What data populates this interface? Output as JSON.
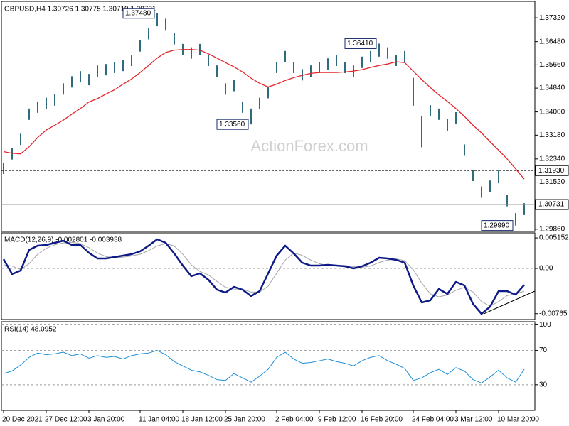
{
  "chart_data": [
    {
      "type": "hilo",
      "title": "GBPUSD,H4 1.30726 1.30775 1.30719 1.30731",
      "watermark": "ActionForex.com",
      "color": "#2f6b7c",
      "high": [
        1.3221,
        1.3272,
        1.3323,
        1.3412,
        1.3437,
        1.345,
        1.3462,
        1.3501,
        1.3526,
        1.3544,
        1.3534,
        1.3564,
        1.3569,
        1.3577,
        1.3584,
        1.3602,
        1.3653,
        1.3696,
        1.3748,
        1.3729,
        1.3678,
        1.364,
        1.3628,
        1.364,
        1.3602,
        1.3564,
        1.3501,
        1.3513,
        1.3437,
        1.3412,
        1.345,
        1.3488,
        1.3577,
        1.3615,
        1.3577,
        1.3551,
        1.3564,
        1.3577,
        1.3589,
        1.3602,
        1.3577,
        1.3564,
        1.3595,
        1.3615,
        1.3641,
        1.3628,
        1.3602,
        1.3615,
        1.352,
        1.3386,
        1.3424,
        1.3412,
        1.3374,
        1.3399,
        1.3285,
        1.3196,
        1.3137,
        1.3158,
        1.3193,
        1.3107,
        1.3043,
        1.3078
      ],
      "low": [
        1.3181,
        1.3232,
        1.3283,
        1.3372,
        1.3397,
        1.341,
        1.3422,
        1.3461,
        1.3486,
        1.3504,
        1.3494,
        1.3524,
        1.3529,
        1.3537,
        1.3544,
        1.3562,
        1.3613,
        1.3656,
        1.3702,
        1.3689,
        1.3638,
        1.36,
        1.3588,
        1.36,
        1.3562,
        1.3524,
        1.3461,
        1.3473,
        1.3397,
        1.3356,
        1.341,
        1.3448,
        1.3537,
        1.3575,
        1.3537,
        1.3511,
        1.3524,
        1.3537,
        1.3549,
        1.3562,
        1.3537,
        1.3524,
        1.3555,
        1.3575,
        1.3595,
        1.3588,
        1.3562,
        1.3575,
        1.3422,
        1.3275,
        1.3384,
        1.3372,
        1.3334,
        1.3359,
        1.3245,
        1.3156,
        1.3097,
        1.3118,
        1.3148,
        1.3067,
        1.2999,
        1.3036
      ],
      "ma": {
        "color": "#e3262b",
        "values": [
          1.326,
          1.3254,
          1.3252,
          1.3277,
          1.331,
          1.3336,
          1.3353,
          1.3371,
          1.3392,
          1.3412,
          1.3435,
          1.3447,
          1.3463,
          1.3478,
          1.3498,
          1.3516,
          1.3539,
          1.3564,
          1.359,
          1.361,
          1.3618,
          1.362,
          1.362,
          1.3618,
          1.3605,
          1.359,
          1.3574,
          1.3559,
          1.3541,
          1.3519,
          1.3501,
          1.3488,
          1.3498,
          1.3511,
          1.3521,
          1.3529,
          1.3536,
          1.3539,
          1.3539,
          1.3539,
          1.3541,
          1.3544,
          1.3549,
          1.3557,
          1.3564,
          1.3569,
          1.3577,
          1.3574,
          1.3544,
          1.3514,
          1.3486,
          1.346,
          1.3437,
          1.3412,
          1.3384,
          1.3353,
          1.3326,
          1.3295,
          1.3265,
          1.3234,
          1.3199,
          1.3163
        ]
      },
      "ylim": [
        1.2978,
        1.3785
      ],
      "yticks": [
        {
          "value": 1.3732,
          "label": "1.37320"
        },
        {
          "value": 1.3648,
          "label": "1.36480"
        },
        {
          "value": 1.3566,
          "label": "1.35660"
        },
        {
          "value": 1.3484,
          "label": "1.34840"
        },
        {
          "value": 1.34,
          "label": "1.34000"
        },
        {
          "value": 1.3318,
          "label": "1.33180"
        },
        {
          "value": 1.3234,
          "label": "1.32340"
        },
        {
          "value": 1.3152,
          "label": "1.31520"
        },
        {
          "value": 1.2986,
          "label": "1.29860"
        }
      ],
      "levels": [
        {
          "value": 1.3193,
          "label": "1.31930",
          "line": "dashed"
        },
        {
          "value": 1.30731,
          "label": "1.30731",
          "line": "solid"
        }
      ],
      "annotations": [
        {
          "value": 1.3748,
          "label": "1.37480"
        },
        {
          "value": 1.3356,
          "label": "1.33560"
        },
        {
          "value": 1.3641,
          "label": "1.36410"
        },
        {
          "value": 1.2999,
          "label": "1.29990"
        }
      ]
    },
    {
      "type": "line",
      "title": "MACD(12,26,9) -0.002801 -0.003938",
      "zero_line": true,
      "ylim": [
        -0.00864,
        0.00588
      ],
      "yticks": [
        {
          "value": 0.005152,
          "label": "0.005152"
        },
        {
          "value": 0,
          "label": "0.00"
        },
        {
          "value": -0.00765,
          "label": "-0.00765"
        }
      ],
      "series": [
        {
          "color": "#a6a6a6",
          "width": 1,
          "values": [
            0.0006,
            0.0004,
            -0.0002,
            0.0008,
            0.0024,
            0.0034,
            0.004,
            0.0043,
            0.0044,
            0.0042,
            0.0035,
            0.0026,
            0.002,
            0.0018,
            0.0019,
            0.0021,
            0.0024,
            0.003,
            0.0038,
            0.0042,
            0.0038,
            0.0024,
            0.0006,
            -0.0005,
            -0.0011,
            -0.0022,
            -0.0032,
            -0.0035,
            -0.0035,
            -0.004,
            -0.004,
            -0.003,
            -0.0008,
            0.0014,
            0.0026,
            0.0022,
            0.0014,
            0.0008,
            0.0005,
            0.0005,
            0.0005,
            0.0003,
            0.0002,
            0.0004,
            0.001,
            0.0014,
            0.0016,
            0.0013,
            -0.0002,
            -0.0025,
            -0.0043,
            -0.0048,
            -0.0045,
            -0.0037,
            -0.0032,
            -0.004,
            -0.0056,
            -0.0064,
            -0.0056,
            -0.0046,
            -0.0042,
            -0.0039
          ]
        },
        {
          "color": "#0d1a87",
          "width": 2.5,
          "values": [
            0.00156,
            -0.00096,
            -0.00036,
            0.00312,
            0.00384,
            0.00396,
            0.00432,
            0.00468,
            0.00396,
            0.00396,
            0.00264,
            0.00168,
            0.00168,
            0.00192,
            0.00216,
            0.0024,
            0.00288,
            0.00384,
            0.00492,
            0.00432,
            0.00252,
            0.00048,
            -0.00132,
            -0.00084,
            -0.00192,
            -0.0036,
            -0.00408,
            -0.00312,
            -0.0036,
            -0.00468,
            -0.00384,
            -0.00084,
            0.00216,
            0.00384,
            0.00252,
            0.00096,
            0.00048,
            0.00048,
            0.0006,
            0.00048,
            0.00036,
            0,
            0.00036,
            0.00096,
            0.0018,
            0.00168,
            0.00144,
            0.00096,
            -0.00288,
            -0.00576,
            -0.0054,
            -0.00348,
            -0.00432,
            -0.00228,
            -0.00288,
            -0.006,
            -0.00768,
            -0.00648,
            -0.00384,
            -0.00384,
            -0.00444,
            -0.0028
          ]
        }
      ]
    },
    {
      "type": "line",
      "title": "RSI(14) 48.0952",
      "grid": true,
      "ylim": [
        0,
        102
      ],
      "yticks": [
        100,
        70,
        30
      ],
      "series": [
        {
          "color": "#1e8fd6",
          "width": 1,
          "values": [
            43,
            46,
            53,
            62,
            67,
            65,
            66,
            68,
            64,
            66,
            61,
            64,
            62,
            63,
            60,
            64,
            66,
            67,
            70,
            65,
            57,
            52,
            47,
            45,
            41,
            36,
            35,
            43,
            38,
            33,
            40,
            48,
            62,
            68,
            60,
            55,
            56,
            58,
            60,
            57,
            55,
            52,
            58,
            62,
            64,
            58,
            54,
            49,
            35,
            38,
            44,
            48,
            42,
            50,
            46,
            36,
            32,
            39,
            47,
            38,
            33,
            48.1
          ]
        }
      ],
      "categories": [
        "20 Dec 2021",
        null,
        null,
        null,
        null,
        "27 Dec 12:00",
        null,
        null,
        null,
        null,
        "3 Jan 20:00",
        null,
        null,
        null,
        null,
        null,
        "11 Jan 04:00",
        null,
        null,
        null,
        null,
        "18 Jan 12:00",
        null,
        null,
        null,
        null,
        "25 Jan 20:00",
        null,
        null,
        null,
        null,
        null,
        "2 Feb 04:00",
        null,
        null,
        null,
        null,
        "9 Feb 12:00",
        null,
        null,
        null,
        null,
        "16 Feb 20:00",
        null,
        null,
        null,
        null,
        null,
        "24 Feb 04:00",
        null,
        null,
        null,
        null,
        "3 Mar 12:00",
        null,
        null,
        null,
        null,
        "10 Mar 20:00",
        null,
        null,
        null
      ]
    }
  ]
}
